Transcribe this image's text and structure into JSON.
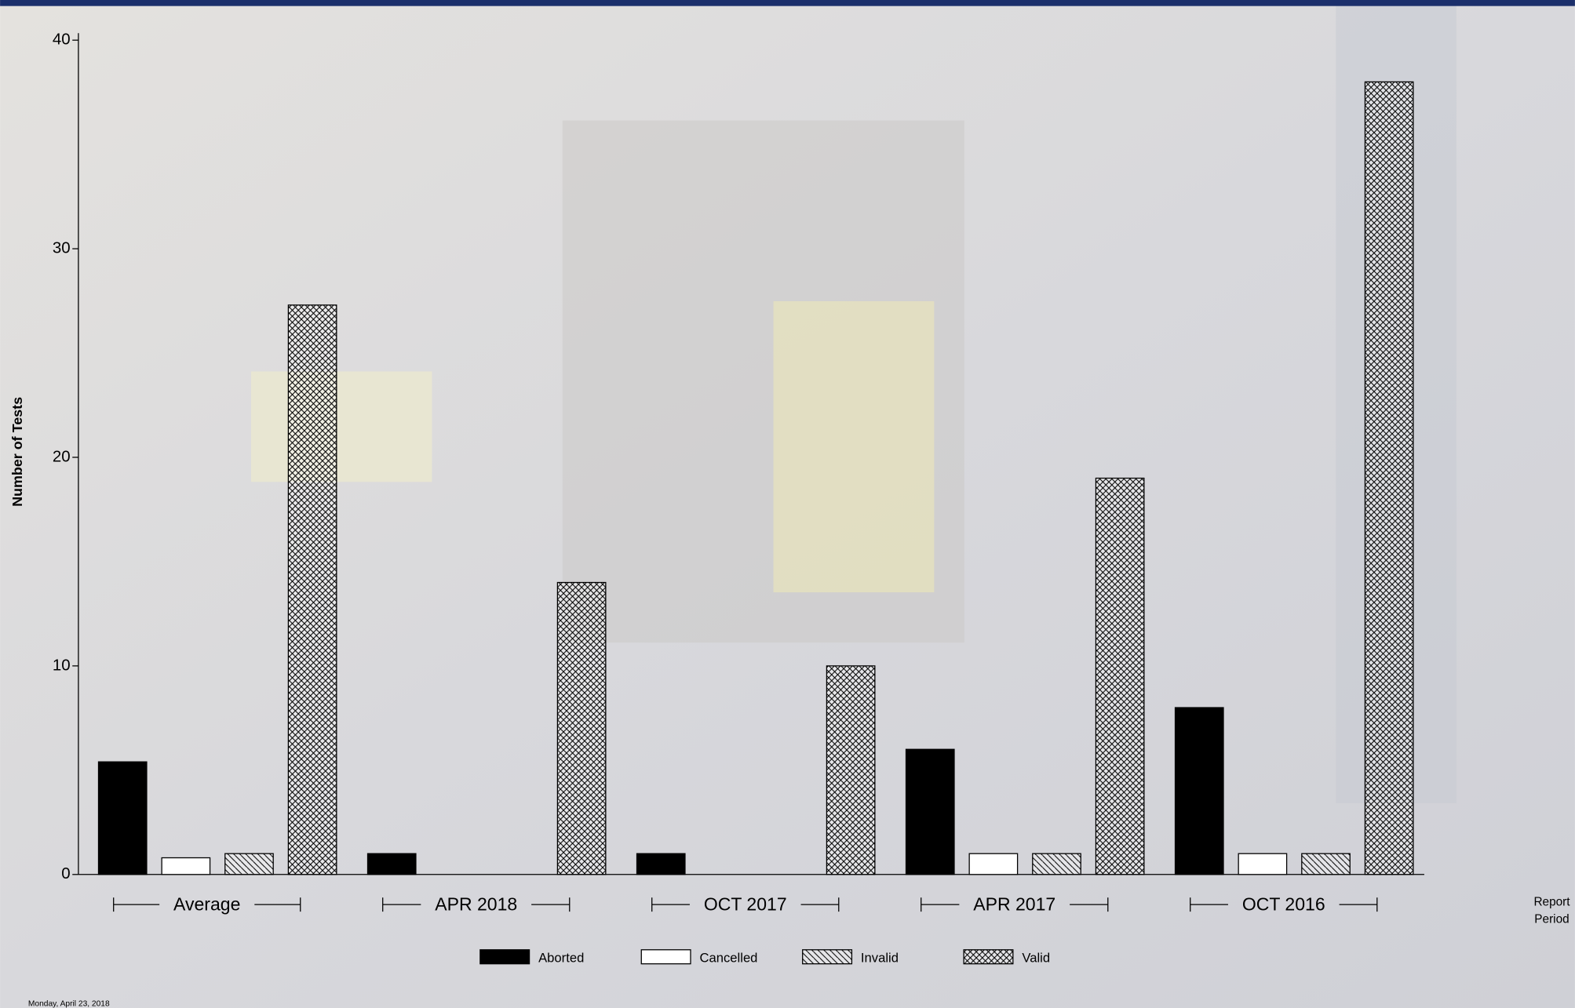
{
  "chart_data": {
    "type": "bar",
    "y_label": "Number of Tests",
    "x_label": "Report Period",
    "footer": "Monday, April 23, 2018",
    "categories": [
      "Average",
      "APR 2018",
      "OCT 2017",
      "APR 2017",
      "OCT 2016"
    ],
    "series": [
      {
        "name": "Aborted",
        "color": "#000000",
        "hatch": "none",
        "values": [
          5.4,
          1,
          1,
          6,
          8
        ]
      },
      {
        "name": "Cancelled",
        "color": "#ffffff",
        "hatch": "none",
        "values": [
          0.8,
          0,
          0,
          1,
          1
        ]
      },
      {
        "name": "Invalid",
        "color": "#ffffff",
        "hatch": "diagonal",
        "values": [
          1,
          0,
          0,
          1,
          1
        ]
      },
      {
        "name": "Valid",
        "color": "#ffffff",
        "hatch": "cross",
        "values": [
          27.3,
          14,
          10,
          19,
          38
        ]
      }
    ],
    "ylim": [
      0,
      40
    ],
    "yticks": [
      0,
      10,
      20,
      30,
      40
    ]
  }
}
